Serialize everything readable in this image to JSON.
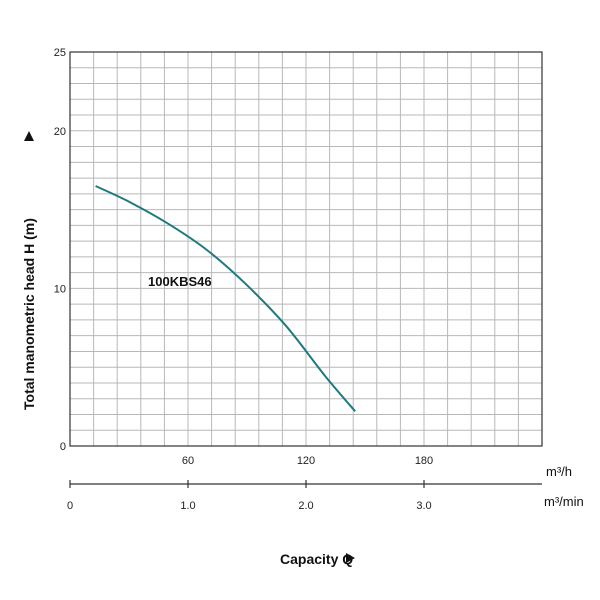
{
  "chart_data": {
    "type": "line",
    "xlabel": "Capacity Q",
    "ylabel": "Total manometric head H (m)",
    "ylim": [
      0,
      25
    ],
    "y_ticks": [
      "0",
      "10",
      "20",
      "25"
    ],
    "x_axis_primary": {
      "unit": "m³/h",
      "xlim": [
        0,
        240
      ],
      "ticks": [
        "60",
        "120",
        "180"
      ]
    },
    "x_axis_secondary": {
      "unit": "m³/min",
      "xlim": [
        0,
        4
      ],
      "ticks": [
        "0",
        "1.0",
        "2.0",
        "3.0"
      ]
    },
    "grid": true,
    "series": [
      {
        "name": "100KBS46",
        "color": "#1f7a80",
        "x": [
          13,
          30,
          50,
          70,
          90,
          110,
          130,
          145
        ],
        "y": [
          16.5,
          15.5,
          14.1,
          12.4,
          10.2,
          7.6,
          4.4,
          2.2
        ]
      }
    ]
  }
}
